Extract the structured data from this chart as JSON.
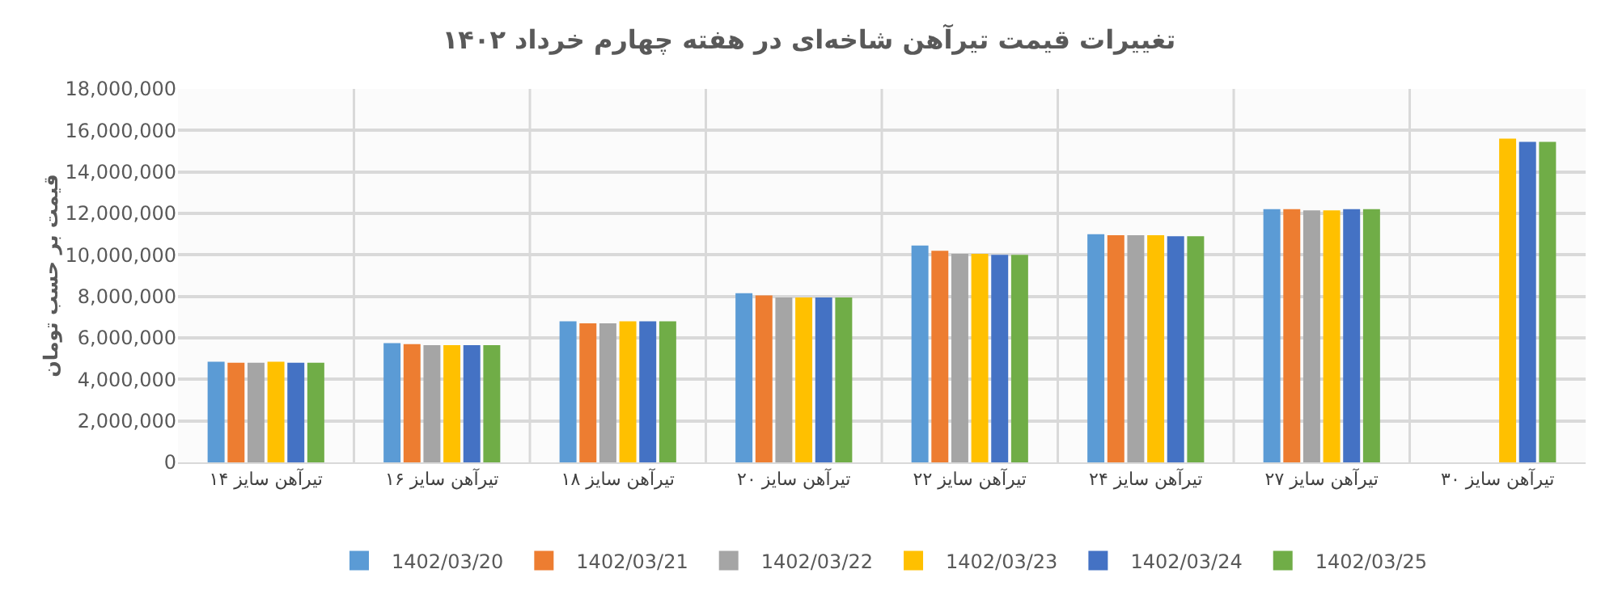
{
  "chart_data": {
    "type": "bar",
    "title": "تغییرات قیمت تیرآهن شاخه‌ای در هفته چهارم خرداد ۱۴۰۲",
    "ylabel": "قیمت بر حسب تومان",
    "categories": [
      "تیرآهن سایز ۱۴",
      "تیرآهن سایز ۱۶",
      "تیرآهن سایز ۱۸",
      "تیرآهن سایز ۲۰",
      "تیرآهن سایز ۲۲",
      "تیرآهن سایز ۲۴",
      "تیرآهن سایز ۲۷",
      "تیرآهن سایز ۳۰"
    ],
    "series": [
      {
        "name": "1402/03/20",
        "color": "#5b9bd5",
        "values": [
          4850000,
          5750000,
          6800000,
          8150000,
          10450000,
          11000000,
          12200000,
          null
        ]
      },
      {
        "name": "1402/03/21",
        "color": "#ed7d31",
        "values": [
          4800000,
          5700000,
          6700000,
          8050000,
          10200000,
          10950000,
          12200000,
          null
        ]
      },
      {
        "name": "1402/03/22",
        "color": "#a5a5a5",
        "values": [
          4800000,
          5650000,
          6700000,
          7950000,
          10050000,
          10950000,
          12150000,
          null
        ]
      },
      {
        "name": "1402/03/23",
        "color": "#ffc000",
        "values": [
          4850000,
          5650000,
          6800000,
          7950000,
          10050000,
          10950000,
          12150000,
          15600000
        ]
      },
      {
        "name": "1402/03/24",
        "color": "#4472c4",
        "values": [
          4800000,
          5650000,
          6800000,
          7950000,
          10000000,
          10900000,
          12200000,
          15450000
        ]
      },
      {
        "name": "1402/03/25",
        "color": "#70ad47",
        "values": [
          4800000,
          5650000,
          6800000,
          7950000,
          10000000,
          10900000,
          12200000,
          15450000
        ]
      }
    ],
    "ylim": [
      0,
      18000000
    ],
    "yticks": [
      {
        "value": 0,
        "label": "0"
      },
      {
        "value": 2000000,
        "label": "2,000,000"
      },
      {
        "value": 4000000,
        "label": "4,000,000"
      },
      {
        "value": 6000000,
        "label": "6,000,000"
      },
      {
        "value": 8000000,
        "label": "8,000,000"
      },
      {
        "value": 10000000,
        "label": "10,000,000"
      },
      {
        "value": 12000000,
        "label": "12,000,000"
      },
      {
        "value": 14000000,
        "label": "14,000,000"
      },
      {
        "value": 16000000,
        "label": "16,000,000"
      },
      {
        "value": 18000000,
        "label": "18,000,000"
      }
    ],
    "grid": true,
    "legend": "bottom"
  }
}
